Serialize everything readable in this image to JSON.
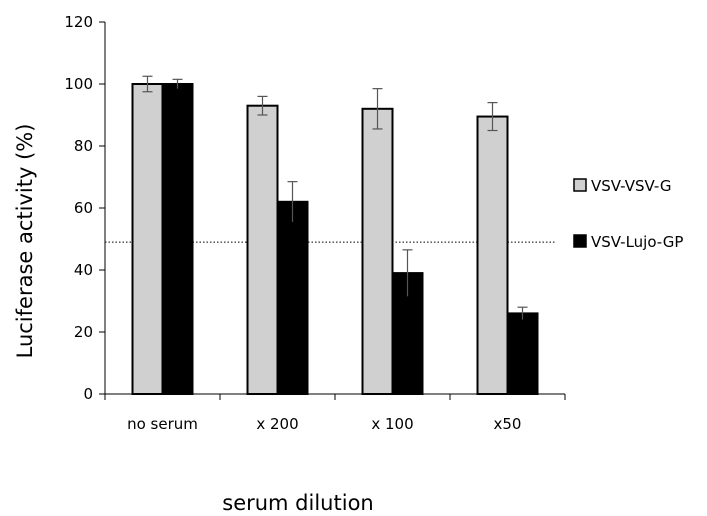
{
  "chart_data": {
    "type": "bar",
    "categories": [
      "no serum",
      "x 200",
      "x 100",
      "x50"
    ],
    "series": [
      {
        "name": "VSV-VSV-G",
        "values": [
          100,
          93,
          92,
          89.5
        ],
        "errors": [
          2.5,
          3,
          6.5,
          4.5
        ],
        "color": "#d0d0d0"
      },
      {
        "name": "VSV-Lujo-GP",
        "values": [
          100,
          62,
          39,
          26
        ],
        "errors": [
          1.5,
          6.5,
          7.5,
          2
        ],
        "color": "#000000"
      }
    ],
    "xlabel": "serum dilution",
    "ylabel": "Luciferase activity (%)",
    "ylim": [
      0,
      120
    ],
    "yticks": [
      "0",
      "20",
      "40",
      "60",
      "80",
      "100",
      "120"
    ],
    "reference_line": {
      "y": 49,
      "style": "dotted"
    },
    "legend_position": "right",
    "grid": false
  }
}
